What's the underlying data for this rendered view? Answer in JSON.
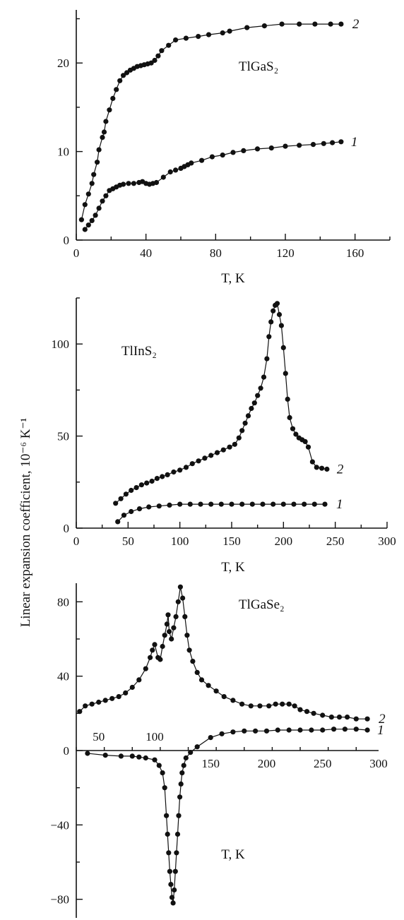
{
  "figure": {
    "ylabel": "Linear expansion coefficient, 10⁻⁶ K⁻¹",
    "color": "#111111"
  },
  "chart_data": [
    {
      "type": "scatter",
      "title": "TlGaS₂",
      "xlabel": "T, K",
      "xlim": [
        0,
        180
      ],
      "ylim": [
        0,
        26
      ],
      "xticks": [
        0,
        40,
        80,
        120,
        160
      ],
      "yticks": [
        0,
        10,
        20
      ],
      "series": [
        {
          "name": "1",
          "x": [
            5,
            7,
            9,
            11,
            13,
            15,
            17,
            19,
            21,
            23,
            25,
            27,
            30,
            33,
            36,
            38,
            40,
            42,
            44,
            46,
            50,
            54,
            57,
            60,
            62,
            64,
            66,
            72,
            78,
            84,
            90,
            96,
            104,
            112,
            120,
            128,
            136,
            142,
            147,
            152
          ],
          "y": [
            1.2,
            1.7,
            2.2,
            2.8,
            3.6,
            4.4,
            5.0,
            5.6,
            5.8,
            6.0,
            6.2,
            6.3,
            6.4,
            6.4,
            6.5,
            6.6,
            6.4,
            6.3,
            6.4,
            6.5,
            7.1,
            7.7,
            7.9,
            8.1,
            8.3,
            8.5,
            8.7,
            9.0,
            9.4,
            9.6,
            9.9,
            10.1,
            10.3,
            10.4,
            10.6,
            10.7,
            10.8,
            10.9,
            11.0,
            11.1
          ]
        },
        {
          "name": "2",
          "x": [
            3,
            5,
            7,
            9,
            10,
            12,
            13,
            15,
            16,
            17,
            19,
            21,
            23,
            25,
            27,
            29,
            31,
            33,
            35,
            37,
            39,
            41,
            43,
            45,
            47,
            49,
            53,
            57,
            63,
            70,
            76,
            84,
            88,
            98,
            108,
            118,
            128,
            137,
            146,
            152
          ],
          "y": [
            2.3,
            4.0,
            5.2,
            6.4,
            7.4,
            8.8,
            10.2,
            11.6,
            12.2,
            13.4,
            14.7,
            16.0,
            17.0,
            18.0,
            18.6,
            18.9,
            19.2,
            19.4,
            19.6,
            19.7,
            19.8,
            19.9,
            20.0,
            20.3,
            20.8,
            21.4,
            22.0,
            22.6,
            22.8,
            23.0,
            23.2,
            23.4,
            23.6,
            24.0,
            24.2,
            24.4,
            24.4,
            24.4,
            24.4,
            24.4
          ]
        }
      ]
    },
    {
      "type": "scatter",
      "title": "TlInS₂",
      "xlabel": "T, K",
      "xlim": [
        0,
        300
      ],
      "ylim": [
        0,
        125
      ],
      "xticks": [
        0,
        50,
        100,
        150,
        200,
        250,
        300
      ],
      "yticks": [
        0,
        50,
        100
      ],
      "series": [
        {
          "name": "1",
          "x": [
            40,
            46,
            53,
            61,
            70,
            80,
            90,
            100,
            110,
            120,
            130,
            140,
            150,
            160,
            170,
            180,
            190,
            200,
            210,
            220,
            230,
            240
          ],
          "y": [
            3.5,
            7,
            9,
            10.5,
            11.5,
            12,
            12.5,
            13,
            13,
            13,
            13,
            13,
            13,
            13,
            13,
            13,
            13,
            13,
            13,
            13,
            13,
            13
          ]
        },
        {
          "name": "2",
          "x": [
            38,
            43,
            48,
            53,
            58,
            63,
            68,
            73,
            78,
            83,
            88,
            94,
            100,
            106,
            112,
            118,
            124,
            130,
            136,
            142,
            148,
            153,
            157,
            160,
            163,
            166,
            169,
            172,
            175,
            178,
            181,
            184,
            186,
            188,
            190,
            192,
            194,
            196,
            198,
            200,
            202,
            204,
            206,
            209,
            212,
            215,
            218,
            221,
            224,
            228,
            232,
            237,
            242
          ],
          "y": [
            13.5,
            16,
            18.5,
            20.5,
            22,
            23.5,
            24.5,
            25.5,
            27,
            28,
            29,
            30.5,
            31.5,
            33,
            35,
            36.5,
            38,
            39.5,
            41,
            42.5,
            44,
            45.5,
            49,
            53,
            57,
            61,
            65,
            68,
            72,
            76,
            82,
            92,
            104,
            112,
            118,
            121,
            122,
            116,
            110,
            98,
            84,
            70,
            60,
            54,
            51,
            49,
            48,
            47,
            44,
            36,
            33,
            32.5,
            32
          ]
        }
      ]
    },
    {
      "type": "scatter",
      "title": "TlGaSe₂",
      "xlabel": "T, K",
      "xlim": [
        30,
        300
      ],
      "ylim": [
        -90,
        90
      ],
      "xticks": [
        50,
        100,
        150,
        200,
        250,
        300
      ],
      "yticks": [
        -80,
        -40,
        0,
        40,
        80
      ],
      "series": [
        {
          "name": "1",
          "x": [
            40,
            56,
            70,
            80,
            86,
            92,
            100,
            104,
            107,
            109,
            110.5,
            111.5,
            112.5,
            113.5,
            114.5,
            115.5,
            116.5,
            117.5,
            118.5,
            119.5,
            120.5,
            121.5,
            122.5,
            123.5,
            124.5,
            126,
            128,
            132,
            138,
            150,
            160,
            170,
            180,
            190,
            200,
            210,
            220,
            230,
            240,
            250,
            260,
            270,
            280,
            290
          ],
          "y": [
            -1.5,
            -2.5,
            -3,
            -3,
            -3.5,
            -4,
            -5,
            -8,
            -12,
            -20,
            -35,
            -45,
            -55,
            -65,
            -72,
            -79,
            -82,
            -75,
            -65,
            -55,
            -45,
            -35,
            -25,
            -18,
            -12,
            -8,
            -4,
            -1,
            2,
            7,
            9,
            10,
            10.5,
            10.5,
            10.5,
            11,
            11,
            11,
            11,
            11,
            11.5,
            11.5,
            11.5,
            11
          ]
        },
        {
          "name": "2",
          "x": [
            33,
            38,
            44,
            50,
            56,
            62,
            68,
            74,
            80,
            86,
            92,
            96,
            98,
            100,
            103,
            105,
            107,
            109,
            111,
            112,
            113,
            115,
            117,
            119,
            121,
            123,
            125,
            127,
            129,
            131,
            134,
            138,
            142,
            148,
            155,
            162,
            170,
            178,
            186,
            194,
            202,
            208,
            214,
            220,
            225,
            230,
            236,
            242,
            250,
            258,
            265,
            272,
            280,
            290
          ],
          "y": [
            21,
            24,
            25,
            26,
            27,
            28,
            29,
            31,
            34,
            38,
            44,
            50,
            54,
            57,
            50,
            49,
            56,
            62,
            68,
            73,
            64,
            60,
            66,
            72,
            80,
            88,
            82,
            72,
            62,
            54,
            48,
            42,
            38,
            35,
            32,
            29,
            27,
            25,
            24,
            24,
            24,
            25,
            25,
            25,
            24,
            22,
            21,
            20,
            19,
            18,
            18,
            18,
            17,
            17
          ]
        }
      ]
    }
  ]
}
